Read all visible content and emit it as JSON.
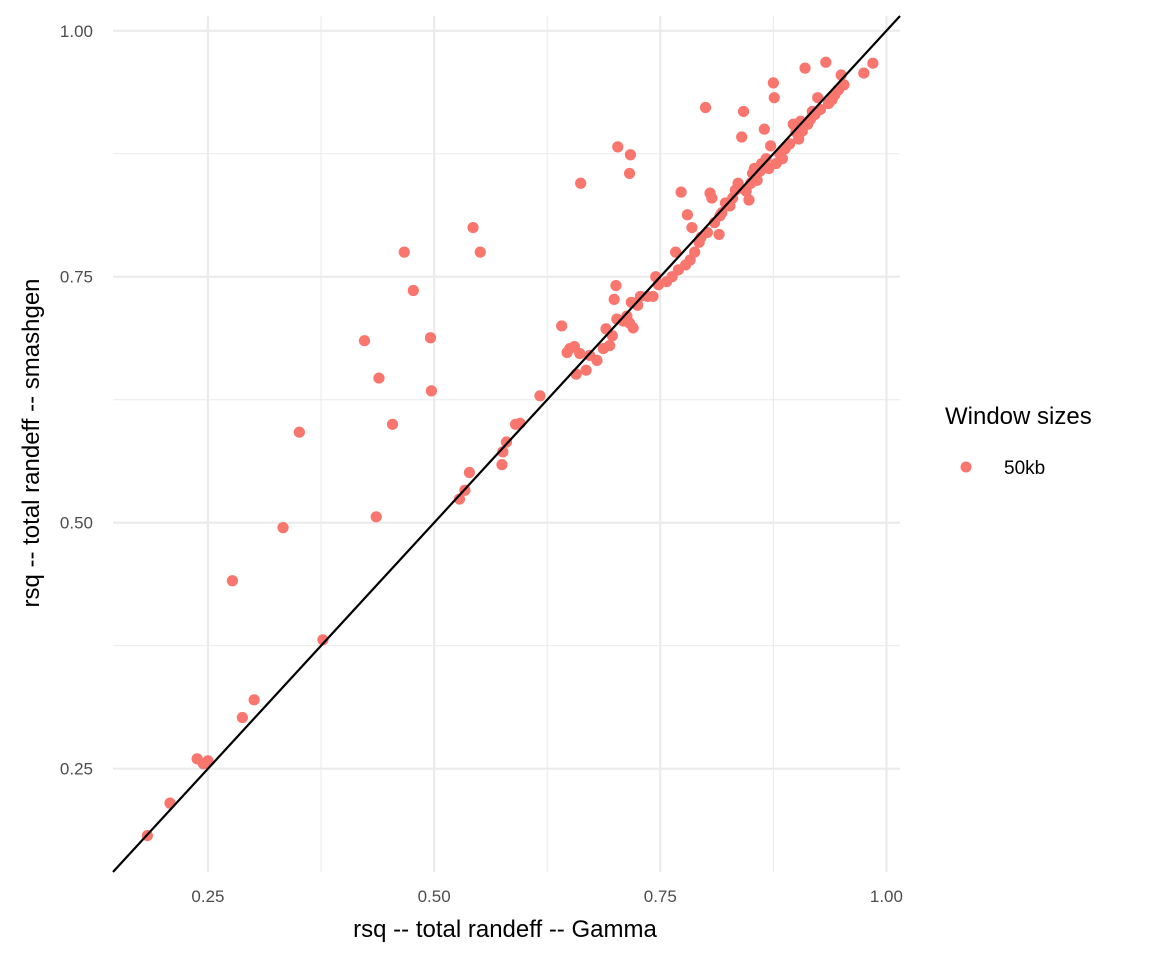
{
  "chart_data": {
    "type": "scatter",
    "title": "",
    "xlabel": "rsq -- total randeff -- Gamma",
    "ylabel": "rsq -- total randeff -- smashgen",
    "xlim": [
      0.145,
      1.015
    ],
    "ylim": [
      0.145,
      1.015
    ],
    "xticks": [
      "0.25",
      "0.50",
      "0.75",
      "1.00"
    ],
    "yticks": [
      "0.25",
      "0.50",
      "0.75",
      "1.00"
    ],
    "grid": true,
    "reference_line": {
      "type": "identity",
      "slope": 1,
      "intercept": 0,
      "color": "#000000"
    },
    "legend": {
      "title": "Window sizes",
      "position": "right"
    },
    "series": [
      {
        "name": "50kb",
        "color": "#F8766D",
        "points": [
          [
            0.183,
            0.182
          ],
          [
            0.208,
            0.215
          ],
          [
            0.238,
            0.26
          ],
          [
            0.245,
            0.255
          ],
          [
            0.25,
            0.258
          ],
          [
            0.277,
            0.441
          ],
          [
            0.288,
            0.302
          ],
          [
            0.301,
            0.32
          ],
          [
            0.333,
            0.495
          ],
          [
            0.351,
            0.592
          ],
          [
            0.377,
            0.381
          ],
          [
            0.423,
            0.685
          ],
          [
            0.436,
            0.506
          ],
          [
            0.439,
            0.647
          ],
          [
            0.454,
            0.6
          ],
          [
            0.467,
            0.775
          ],
          [
            0.477,
            0.736
          ],
          [
            0.496,
            0.688
          ],
          [
            0.497,
            0.634
          ],
          [
            0.528,
            0.524
          ],
          [
            0.534,
            0.533
          ],
          [
            0.539,
            0.551
          ],
          [
            0.543,
            0.8
          ],
          [
            0.551,
            0.775
          ],
          [
            0.575,
            0.559
          ],
          [
            0.576,
            0.572
          ],
          [
            0.58,
            0.582
          ],
          [
            0.59,
            0.6
          ],
          [
            0.595,
            0.601
          ],
          [
            0.617,
            0.629
          ],
          [
            0.641,
            0.7
          ],
          [
            0.647,
            0.673
          ],
          [
            0.65,
            0.677
          ],
          [
            0.655,
            0.679
          ],
          [
            0.657,
            0.651
          ],
          [
            0.661,
            0.672
          ],
          [
            0.662,
            0.845
          ],
          [
            0.668,
            0.655
          ],
          [
            0.672,
            0.67
          ],
          [
            0.68,
            0.665
          ],
          [
            0.687,
            0.677
          ],
          [
            0.69,
            0.697
          ],
          [
            0.694,
            0.68
          ],
          [
            0.697,
            0.69
          ],
          [
            0.699,
            0.727
          ],
          [
            0.701,
            0.741
          ],
          [
            0.702,
            0.707
          ],
          [
            0.703,
            0.882
          ],
          [
            0.709,
            0.705
          ],
          [
            0.713,
            0.71
          ],
          [
            0.716,
            0.703
          ],
          [
            0.717,
            0.874
          ],
          [
            0.718,
            0.724
          ],
          [
            0.72,
            0.698
          ],
          [
            0.716,
            0.855
          ],
          [
            0.725,
            0.721
          ],
          [
            0.728,
            0.73
          ],
          [
            0.736,
            0.73
          ],
          [
            0.742,
            0.73
          ],
          [
            0.745,
            0.75
          ],
          [
            0.748,
            0.742
          ],
          [
            0.757,
            0.745
          ],
          [
            0.763,
            0.75
          ],
          [
            0.767,
            0.775
          ],
          [
            0.77,
            0.757
          ],
          [
            0.773,
            0.836
          ],
          [
            0.778,
            0.762
          ],
          [
            0.78,
            0.813
          ],
          [
            0.783,
            0.767
          ],
          [
            0.785,
            0.8
          ],
          [
            0.788,
            0.775
          ],
          [
            0.793,
            0.785
          ],
          [
            0.795,
            0.79
          ],
          [
            0.8,
            0.922
          ],
          [
            0.802,
            0.795
          ],
          [
            0.805,
            0.835
          ],
          [
            0.807,
            0.83
          ],
          [
            0.81,
            0.805
          ],
          [
            0.815,
            0.793
          ],
          [
            0.816,
            0.812
          ],
          [
            0.818,
            0.815
          ],
          [
            0.822,
            0.825
          ],
          [
            0.827,
            0.822
          ],
          [
            0.83,
            0.83
          ],
          [
            0.833,
            0.838
          ],
          [
            0.836,
            0.845
          ],
          [
            0.838,
            0.84
          ],
          [
            0.84,
            0.892
          ],
          [
            0.842,
            0.918
          ],
          [
            0.845,
            0.837
          ],
          [
            0.848,
            0.828
          ],
          [
            0.85,
            0.845
          ],
          [
            0.852,
            0.855
          ],
          [
            0.854,
            0.86
          ],
          [
            0.857,
            0.848
          ],
          [
            0.86,
            0.857
          ],
          [
            0.862,
            0.865
          ],
          [
            0.865,
            0.9
          ],
          [
            0.867,
            0.87
          ],
          [
            0.87,
            0.86
          ],
          [
            0.872,
            0.883
          ],
          [
            0.875,
            0.947
          ],
          [
            0.876,
            0.932
          ],
          [
            0.878,
            0.865
          ],
          [
            0.882,
            0.875
          ],
          [
            0.885,
            0.87
          ],
          [
            0.888,
            0.88
          ],
          [
            0.893,
            0.885
          ],
          [
            0.897,
            0.905
          ],
          [
            0.9,
            0.897
          ],
          [
            0.903,
            0.89
          ],
          [
            0.905,
            0.908
          ],
          [
            0.907,
            0.898
          ],
          [
            0.91,
            0.962
          ],
          [
            0.913,
            0.905
          ],
          [
            0.916,
            0.91
          ],
          [
            0.918,
            0.918
          ],
          [
            0.921,
            0.915
          ],
          [
            0.924,
            0.932
          ],
          [
            0.927,
            0.92
          ],
          [
            0.933,
            0.968
          ],
          [
            0.936,
            0.926
          ],
          [
            0.94,
            0.93
          ],
          [
            0.943,
            0.935
          ],
          [
            0.947,
            0.94
          ],
          [
            0.95,
            0.955
          ],
          [
            0.953,
            0.945
          ],
          [
            0.975,
            0.957
          ],
          [
            0.985,
            0.967
          ]
        ]
      }
    ]
  }
}
